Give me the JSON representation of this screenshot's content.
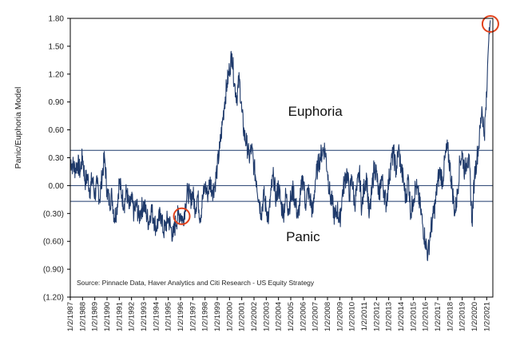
{
  "chart_data": {
    "type": "line",
    "ylabel": "Panic/Euphoria Model",
    "ylim": [
      -1.2,
      1.8
    ],
    "y_ticks": [
      1.8,
      1.5,
      1.2,
      0.9,
      0.6,
      0.3,
      0.0,
      -0.3,
      -0.6,
      -0.9,
      -1.2
    ],
    "y_tick_labels": [
      "1.80",
      "1.50",
      "1.20",
      "0.90",
      "0.60",
      "0.30",
      "0.00",
      "(0.30)",
      "(0.60)",
      "(0.90)",
      "(1.20)"
    ],
    "xlim": [
      1987,
      2021.5
    ],
    "x_tick_labels": [
      "1/2/1987",
      "1/2/1988",
      "1/2/1989",
      "1/2/1990",
      "1/2/1991",
      "1/2/1992",
      "1/2/1993",
      "1/2/1994",
      "1/2/1995",
      "1/2/1996",
      "1/2/1997",
      "1/2/1998",
      "1/2/1999",
      "1/2/2000",
      "1/2/2001",
      "1/2/2002",
      "1/2/2003",
      "1/2/2004",
      "1/2/2005",
      "1/2/2006",
      "1/2/2007",
      "1/2/2008",
      "1/2/2009",
      "1/2/2010",
      "1/2/2011",
      "1/2/2012",
      "1/2/2013",
      "1/2/2014",
      "1/2/2015",
      "1/2/2016",
      "1/2/2017",
      "1/2/2018",
      "1/2/2019",
      "1/2/2020",
      "1/2/2021"
    ],
    "reference_lines": [
      {
        "name": "euphoria-threshold",
        "y": 0.38
      },
      {
        "name": "zero-line",
        "y": 0.0
      },
      {
        "name": "panic-threshold",
        "y": -0.17
      }
    ],
    "annotations": [
      {
        "name": "euphoria-label",
        "text": "Euphoria",
        "x": 2007.0,
        "y": 0.75
      },
      {
        "name": "panic-label",
        "text": "Panic",
        "x": 2006.0,
        "y": -0.6
      }
    ],
    "highlight_circles": [
      {
        "name": "circle-1996",
        "x": 1996.1,
        "y": -0.33
      },
      {
        "name": "circle-2021",
        "x": 2021.3,
        "y": 1.74
      }
    ],
    "source": "Source:  Pinnacle Data, Haver Analytics and Citi Research - US Equity Strategy",
    "grid": false,
    "series": [
      {
        "x": [
          1987.0,
          1987.2,
          1987.4,
          1987.6,
          1987.8,
          1988.0,
          1988.2,
          1988.4,
          1988.6,
          1988.8,
          1989.0,
          1989.2,
          1989.4,
          1989.6,
          1989.8,
          1990.0,
          1990.2,
          1990.4,
          1990.6,
          1990.8,
          1991.0,
          1991.2,
          1991.4,
          1991.6,
          1991.8,
          1992.0,
          1992.2,
          1992.4,
          1992.6,
          1992.8,
          1993.0,
          1993.2,
          1993.4,
          1993.6,
          1993.8,
          1994.0,
          1994.2,
          1994.4,
          1994.6,
          1994.8,
          1995.0,
          1995.2,
          1995.4,
          1995.6,
          1995.8,
          1996.0,
          1996.2,
          1996.4,
          1996.6,
          1996.8,
          1997.0,
          1997.2,
          1997.4,
          1997.6,
          1997.8,
          1998.0,
          1998.2,
          1998.4,
          1998.6,
          1998.8,
          1999.0,
          1999.2,
          1999.4,
          1999.6,
          1999.8,
          2000.0,
          2000.2,
          2000.4,
          2000.6,
          2000.8,
          2001.0,
          2001.2,
          2001.4,
          2001.6,
          2001.8,
          2002.0,
          2002.2,
          2002.4,
          2002.6,
          2002.8,
          2003.0,
          2003.2,
          2003.4,
          2003.6,
          2003.8,
          2004.0,
          2004.2,
          2004.4,
          2004.6,
          2004.8,
          2005.0,
          2005.2,
          2005.4,
          2005.6,
          2005.8,
          2006.0,
          2006.2,
          2006.4,
          2006.6,
          2006.8,
          2007.0,
          2007.2,
          2007.4,
          2007.6,
          2007.8,
          2008.0,
          2008.2,
          2008.4,
          2008.6,
          2008.8,
          2009.0,
          2009.2,
          2009.4,
          2009.6,
          2009.8,
          2010.0,
          2010.2,
          2010.4,
          2010.6,
          2010.8,
          2011.0,
          2011.2,
          2011.4,
          2011.6,
          2011.8,
          2012.0,
          2012.2,
          2012.4,
          2012.6,
          2012.8,
          2013.0,
          2013.2,
          2013.4,
          2013.6,
          2013.8,
          2014.0,
          2014.2,
          2014.4,
          2014.6,
          2014.8,
          2015.0,
          2015.2,
          2015.4,
          2015.6,
          2015.8,
          2016.0,
          2016.2,
          2016.4,
          2016.6,
          2016.8,
          2017.0,
          2017.2,
          2017.4,
          2017.6,
          2017.8,
          2018.0,
          2018.2,
          2018.4,
          2018.6,
          2018.8,
          2019.0,
          2019.2,
          2019.4,
          2019.6,
          2019.8,
          2020.0,
          2020.2,
          2020.4,
          2020.6,
          2020.8,
          2021.0,
          2021.1,
          2021.2,
          2021.3
        ],
        "y": [
          0.28,
          0.22,
          0.18,
          0.25,
          0.15,
          0.32,
          0.05,
          0.1,
          -0.05,
          0.08,
          -0.1,
          0.02,
          -0.15,
          0.12,
          0.3,
          -0.05,
          -0.18,
          -0.1,
          -0.35,
          -0.25,
          0.05,
          -0.1,
          -0.2,
          -0.05,
          -0.25,
          -0.15,
          -0.3,
          -0.2,
          -0.35,
          -0.25,
          -0.2,
          -0.3,
          -0.4,
          -0.25,
          -0.35,
          -0.45,
          -0.38,
          -0.3,
          -0.5,
          -0.42,
          -0.35,
          -0.45,
          -0.55,
          -0.4,
          -0.32,
          -0.3,
          -0.38,
          -0.2,
          -0.05,
          -0.15,
          -0.08,
          -0.25,
          -0.1,
          -0.35,
          -0.15,
          0.0,
          -0.1,
          0.05,
          -0.05,
          0.0,
          0.2,
          0.4,
          0.65,
          0.9,
          1.1,
          1.25,
          1.42,
          1.1,
          0.95,
          1.15,
          0.8,
          0.55,
          0.45,
          0.3,
          0.4,
          0.2,
          0.05,
          -0.15,
          -0.3,
          -0.1,
          -0.25,
          -0.35,
          -0.05,
          0.1,
          -0.15,
          0.0,
          -0.2,
          -0.3,
          -0.1,
          -0.25,
          -0.15,
          -0.05,
          -0.2,
          -0.35,
          -0.1,
          0.1,
          -0.2,
          -0.05,
          -0.15,
          -0.3,
          0.05,
          0.2,
          0.3,
          0.38,
          0.4,
          0.15,
          -0.1,
          -0.2,
          -0.35,
          -0.25,
          -0.4,
          -0.1,
          0.05,
          0.15,
          -0.1,
          0.1,
          -0.2,
          -0.05,
          0.15,
          -0.25,
          0.0,
          0.1,
          -0.35,
          -0.1,
          0.2,
          0.15,
          -0.15,
          0.1,
          -0.05,
          -0.2,
          0.05,
          0.25,
          0.35,
          0.15,
          0.4,
          0.2,
          0.05,
          -0.15,
          0.1,
          -0.3,
          -0.15,
          0.0,
          -0.1,
          -0.25,
          -0.45,
          -0.6,
          -0.75,
          -0.5,
          -0.35,
          -0.2,
          0.05,
          0.15,
          0.05,
          0.3,
          0.4,
          0.2,
          -0.05,
          -0.3,
          -0.1,
          0.25,
          0.35,
          0.15,
          0.3,
          0.2,
          -0.4,
          0.1,
          0.3,
          0.5,
          0.85,
          0.55,
          0.95,
          1.4,
          1.7,
          1.78
        ]
      }
    ]
  }
}
